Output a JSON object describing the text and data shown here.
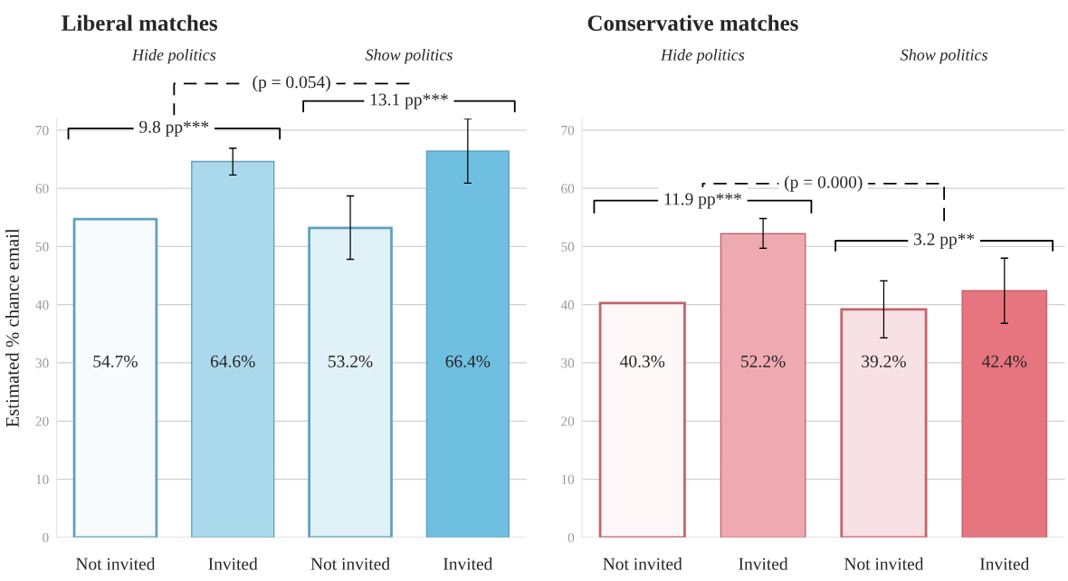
{
  "chart_data": [
    {
      "type": "bar",
      "title": "Liberal matches",
      "ylabel": "Estimated % chance email",
      "categories": [
        "Not invited",
        "Invited",
        "Not invited",
        "Invited"
      ],
      "series": [
        {
          "colors": [
            "#f7fbfd",
            "#abd9ec",
            "#e1f1f8",
            "#6fbfe0"
          ],
          "values": [
            54.7,
            64.6,
            53.2,
            66.4
          ],
          "value_labels": [
            "54.7%",
            "64.6%",
            "53.2%",
            "66.4%"
          ],
          "errors": [
            null,
            [
              62.3,
              66.9
            ],
            [
              47.8,
              58.7
            ],
            [
              60.9,
              72.0
            ]
          ]
        }
      ],
      "ylim": [
        0,
        72
      ],
      "yticks": [
        0,
        10,
        20,
        30,
        40,
        50,
        60,
        70
      ],
      "grid": "y",
      "annotations": [
        "Hide politics",
        "Show politics",
        "9.8 pp***",
        "(p = 0.054)",
        "13.1 pp***"
      ]
    },
    {
      "type": "bar",
      "title": "Conservative matches",
      "categories": [
        "Not invited",
        "Invited",
        "Not invited",
        "Invited"
      ],
      "series": [
        {
          "colors": [
            "#fdf7f8",
            "#eeaab0",
            "#f8e1e4",
            "#e67580"
          ],
          "values": [
            40.3,
            52.2,
            39.2,
            42.4
          ],
          "value_labels": [
            "40.3%",
            "52.2%",
            "39.2%",
            "42.4%"
          ],
          "errors": [
            null,
            [
              49.7,
              54.8
            ],
            [
              34.3,
              44.1
            ],
            [
              36.8,
              48.0
            ]
          ]
        }
      ],
      "ylim": [
        0,
        72
      ],
      "yticks": [
        0,
        10,
        20,
        30,
        40,
        50,
        60,
        70
      ],
      "grid": "y",
      "annotations": [
        "Hide politics",
        "Show politics",
        "11.9 pp***",
        "(p = 0.000)",
        "3.2 pp**"
      ]
    }
  ]
}
